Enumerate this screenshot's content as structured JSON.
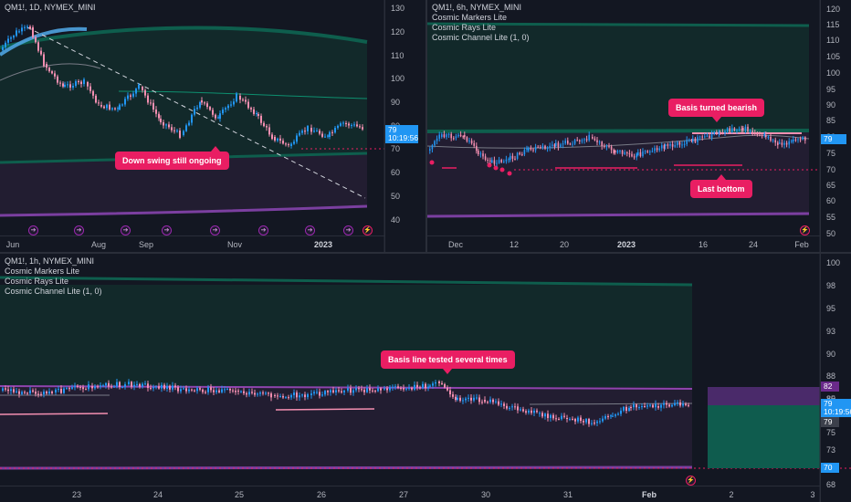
{
  "colors": {
    "background": "#131722",
    "up_candle": "#2196f3",
    "down_candle": "#f48fb1",
    "channel_top": "#0e5e4d",
    "channel_bottom": "#6a2a8a",
    "callout": "#e91e63",
    "price_tag": "#2196f3"
  },
  "panes": {
    "daily": {
      "legend": [
        "QM1!, 1D, NYMEX_MINI"
      ],
      "y_ticks": [
        "130",
        "120",
        "110",
        "100",
        "90",
        "80",
        "70",
        "60",
        "50",
        "40"
      ],
      "x_ticks": [
        {
          "label": "Jun",
          "bold": false
        },
        {
          "label": "Aug",
          "bold": false
        },
        {
          "label": "Sep",
          "bold": false
        },
        {
          "label": "Nov",
          "bold": false
        },
        {
          "label": "2023",
          "bold": true
        }
      ],
      "price_tag": {
        "price": "79",
        "time": "10:19:56"
      },
      "callout": "Down swing still ongoing",
      "event_icon": "arrow-right-circle-icon"
    },
    "six_hour": {
      "legend": [
        "QM1!, 6h, NYMEX_MINI",
        "Cosmic Markers Lite",
        "Cosmic Rays Lite",
        "Cosmic Channel Lite (1, 0)"
      ],
      "y_ticks": [
        "120",
        "115",
        "110",
        "105",
        "100",
        "95",
        "90",
        "85",
        "80",
        "75",
        "70",
        "65",
        "60",
        "55",
        "50"
      ],
      "x_ticks": [
        {
          "label": "Dec",
          "bold": false
        },
        {
          "label": "12",
          "bold": false
        },
        {
          "label": "20",
          "bold": false
        },
        {
          "label": "2023",
          "bold": true
        },
        {
          "label": "16",
          "bold": false
        },
        {
          "label": "24",
          "bold": false
        },
        {
          "label": "Feb",
          "bold": false
        }
      ],
      "price_tag": {
        "price": "79"
      },
      "callouts": [
        "Basis turned bearish",
        "Last bottom"
      ]
    },
    "hourly": {
      "legend": [
        "QM1!, 1h, NYMEX_MINI",
        "Cosmic Markers Lite",
        "Cosmic Rays Lite",
        "Cosmic Channel Lite (1, 0)"
      ],
      "y_ticks": [
        "100",
        "98",
        "95",
        "93",
        "90",
        "88",
        "85",
        "82",
        "80",
        "78",
        "75",
        "73",
        "70",
        "68"
      ],
      "x_ticks": [
        {
          "label": "23",
          "bold": false
        },
        {
          "label": "24",
          "bold": false
        },
        {
          "label": "25",
          "bold": false
        },
        {
          "label": "26",
          "bold": false
        },
        {
          "label": "27",
          "bold": false
        },
        {
          "label": "30",
          "bold": false
        },
        {
          "label": "31",
          "bold": false
        },
        {
          "label": "Feb",
          "bold": true
        },
        {
          "label": "2",
          "bold": false
        },
        {
          "label": "3",
          "bold": false
        }
      ],
      "price_tags": [
        {
          "label": "82",
          "color": "#6a2a8a"
        },
        {
          "label": "79",
          "sub": "10:19:56",
          "color": "#2196f3"
        },
        {
          "label": "79",
          "color": "#3c404b"
        },
        {
          "label": "70",
          "color": "#2196f3"
        }
      ],
      "callout": "Basis line tested several times"
    }
  }
}
